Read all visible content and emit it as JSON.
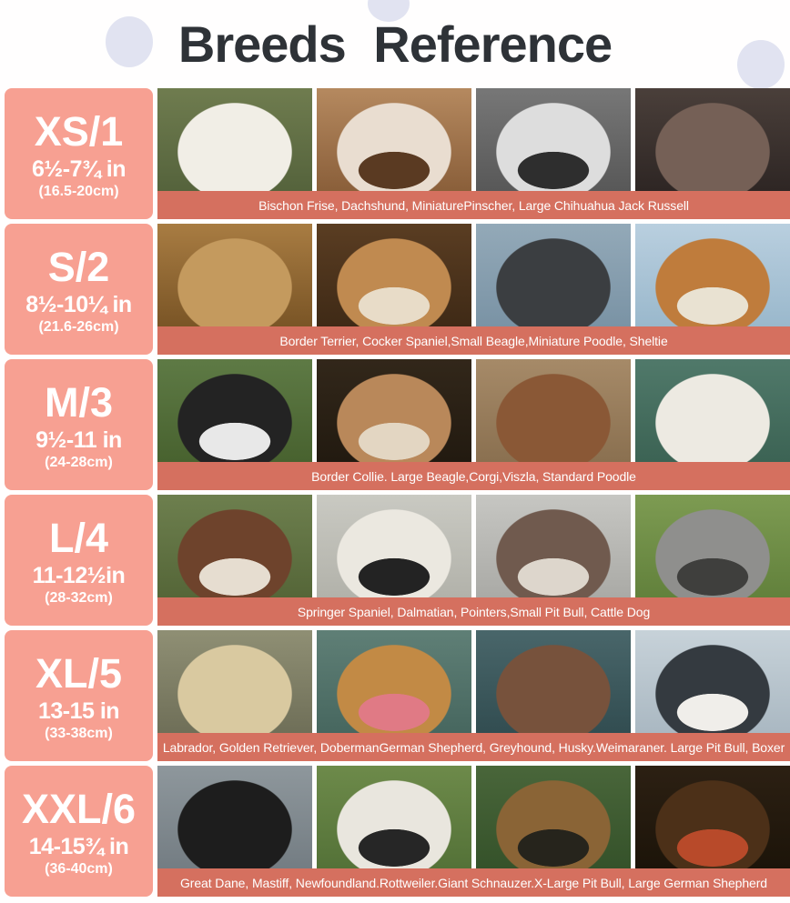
{
  "header": {
    "title": "Breeds Reference"
  },
  "colors": {
    "sidebar": "#f7a092",
    "caption": "#d5705f",
    "title_text": "#2e3237",
    "decor_circle": "#e1e3f1",
    "background": "#fffefe",
    "label_text": "#ffffff"
  },
  "rows": [
    {
      "size": "XS/1",
      "range_in": "6½-7¾ in",
      "range_cm": "(16.5-20cm)",
      "breeds": "Bischon Frise, Dachshund, MiniaturePinscher, Large Chihuahua Jack Russell",
      "photos": [
        {
          "name": "bichon-frise-photo",
          "bg1": "#6f7c4f",
          "bg2": "#55633c",
          "head": "#f1eee6"
        },
        {
          "name": "jack-russell-photo",
          "bg1": "#b5895f",
          "bg2": "#8a5f3a",
          "head": "#e9ddd0",
          "spot": "#5a3a22"
        },
        {
          "name": "jack-russell-bw-photo",
          "bg1": "#777777",
          "bg2": "#585858",
          "head": "#dddddd",
          "spot": "#2e2e2e"
        },
        {
          "name": "miniature-pinscher-photo",
          "bg1": "#4a3f3a",
          "bg2": "#2e2624",
          "head": "#756056"
        }
      ]
    },
    {
      "size": "S/2",
      "range_in": "8½-10¼ in",
      "range_cm": "(21.6-26cm)",
      "breeds": "Border Terrier, Cocker Spaniel,Small Beagle,Miniature Poodle, Sheltie",
      "photos": [
        {
          "name": "cocker-spaniel-photo",
          "bg1": "#a87c42",
          "bg2": "#7a5526",
          "head": "#c49a5e"
        },
        {
          "name": "small-beagle-photo",
          "bg1": "#5a3d22",
          "bg2": "#3f2a16",
          "head": "#c08a50",
          "spot": "#e8dcc8"
        },
        {
          "name": "miniature-poodle-photo",
          "bg1": "#93a9b8",
          "bg2": "#7a93a5",
          "head": "#3b3e41"
        },
        {
          "name": "sheltie-photo",
          "bg1": "#b9cfdf",
          "bg2": "#9ab8cc",
          "head": "#bf7c3c",
          "spot": "#e9e2d2"
        }
      ]
    },
    {
      "size": "M/3",
      "range_in": "9½-11 in",
      "range_cm": "(24-28cm)",
      "breeds": "Border Collie. Large Beagle,Corgi,Viszla, Standard Poodle",
      "photos": [
        {
          "name": "border-collie-photo",
          "bg1": "#5e7a45",
          "bg2": "#48622f",
          "head": "#232323",
          "spot": "#e8e8e8"
        },
        {
          "name": "large-beagle-photo",
          "bg1": "#32271a",
          "bg2": "#221a10",
          "head": "#b9885a",
          "spot": "#e3d6c2"
        },
        {
          "name": "viszla-photo",
          "bg1": "#a68a68",
          "bg2": "#8a7050",
          "head": "#8a5836"
        },
        {
          "name": "standard-poodle-photo",
          "bg1": "#50796a",
          "bg2": "#3c6354",
          "head": "#edeae2"
        }
      ]
    },
    {
      "size": "L/4",
      "range_in": "11-12½in",
      "range_cm": "(28-32cm)",
      "breeds": "Springer Spaniel, Dalmatian, Pointers,Small Pit Bull, Cattle Dog",
      "photos": [
        {
          "name": "springer-spaniel-photo",
          "bg1": "#6d7f4e",
          "bg2": "#556638",
          "head": "#6e432c",
          "spot": "#e6ddd0"
        },
        {
          "name": "dalmatian-photo",
          "bg1": "#c9c9c2",
          "bg2": "#b2b2aa",
          "head": "#ebe8e0",
          "spot": "#232323"
        },
        {
          "name": "pointer-photo",
          "bg1": "#c6c6c2",
          "bg2": "#aaaaa6",
          "head": "#705a4e",
          "spot": "#ddd6cc"
        },
        {
          "name": "cattle-dog-photo",
          "bg1": "#7d9b52",
          "bg2": "#62813c",
          "head": "#8f8f8d",
          "spot": "#3f3f3d"
        }
      ]
    },
    {
      "size": "XL/5",
      "range_in": "13-15 in",
      "range_cm": "(33-38cm)",
      "breeds": "Labrador, Golden Retriever, DobermanGerman Shepherd, Greyhound, Husky.Weimaraner. Large Pit Bull, Boxer",
      "photos": [
        {
          "name": "labrador-photo",
          "bg1": "#8f8f74",
          "bg2": "#6f6f58",
          "head": "#d9c9a0"
        },
        {
          "name": "golden-retriever-photo",
          "bg1": "#5f7f76",
          "bg2": "#47675f",
          "head": "#c28a45",
          "spot": "#e07a85"
        },
        {
          "name": "large-pit-bull-photo",
          "bg1": "#49666a",
          "bg2": "#324d51",
          "head": "#77523c"
        },
        {
          "name": "husky-photo",
          "bg1": "#c7d2d9",
          "bg2": "#aab8c2",
          "head": "#343a40",
          "spot": "#f0eeea"
        }
      ]
    },
    {
      "size": "XXL/6",
      "range_in": "14-15¾ in",
      "range_cm": "(36-40cm)",
      "breeds": "Great Dane, Mastiff, Newfoundland.Rottweiler.Giant Schnauzer.X-Large Pit Bull, Large German Shepherd",
      "photos": [
        {
          "name": "great-dane-photo",
          "bg1": "#8e979c",
          "bg2": "#747d83",
          "head": "#1d1d1d"
        },
        {
          "name": "harlequin-great-dane-photo",
          "bg1": "#6d8a4a",
          "bg2": "#547238",
          "head": "#e9e6de",
          "spot": "#262626"
        },
        {
          "name": "german-shepherd-photo",
          "bg1": "#49663a",
          "bg2": "#35522a",
          "head": "#8a6436",
          "spot": "#26241c"
        },
        {
          "name": "tibetan-mastiff-photo",
          "bg1": "#2c2013",
          "bg2": "#1c1409",
          "head": "#4c3018",
          "spot": "#b84a2a"
        }
      ]
    }
  ]
}
